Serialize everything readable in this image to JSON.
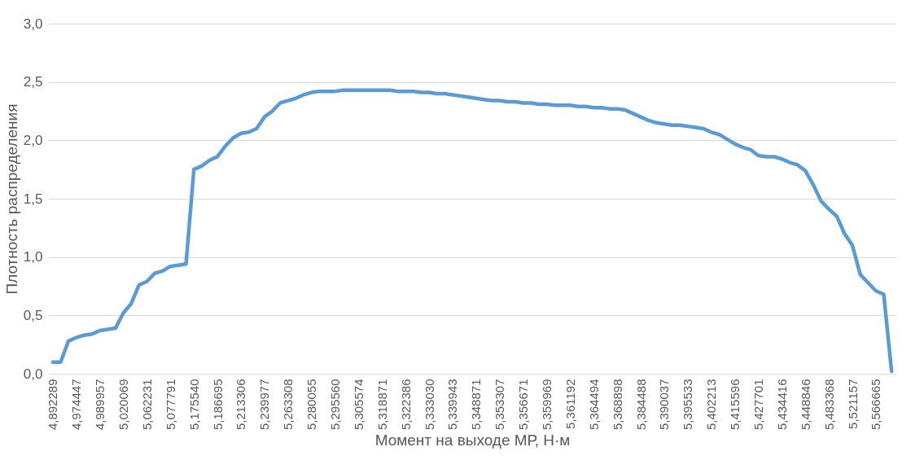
{
  "chart_data": {
    "type": "line",
    "xlabel": "Момент на выходе МР, Н·м",
    "ylabel": "Плотность распределения",
    "categories": [
      "4,892289",
      null,
      null,
      "4,974447",
      null,
      null,
      "4,989957",
      null,
      null,
      "5,020069",
      null,
      null,
      "5,062231",
      null,
      null,
      "5,077791",
      null,
      null,
      "5,175540",
      null,
      null,
      "5,186695",
      null,
      null,
      "5,213306",
      null,
      null,
      "5,239977",
      null,
      null,
      "5,263308",
      null,
      null,
      "5,280055",
      null,
      null,
      "5,295560",
      null,
      null,
      "5,305574",
      null,
      null,
      "5,318871",
      null,
      null,
      "5,322386",
      null,
      null,
      "5,333030",
      null,
      null,
      "5,339943",
      null,
      null,
      "5,348871",
      null,
      null,
      "5,353307",
      null,
      null,
      "5,356671",
      null,
      null,
      "5,359969",
      null,
      null,
      "5,361192",
      null,
      null,
      "5,364494",
      null,
      null,
      "5,368898",
      null,
      null,
      "5,384488",
      null,
      null,
      "5,390037",
      null,
      null,
      "5,395533",
      null,
      null,
      "5,402213",
      null,
      null,
      "5,415596",
      null,
      null,
      "5,427701",
      null,
      null,
      "5,434416",
      null,
      null,
      "5,448846",
      null,
      null,
      "5,483368",
      null,
      null,
      "5,521157",
      null,
      null,
      "5,566665",
      null,
      null
    ],
    "series": [
      {
        "color": "#5b9bd5",
        "values": [
          0.1,
          0.1,
          0.28,
          0.31,
          0.33,
          0.34,
          0.37,
          0.38,
          0.39,
          0.52,
          0.6,
          0.76,
          0.79,
          0.86,
          0.88,
          0.92,
          0.93,
          0.94,
          1.75,
          1.78,
          1.83,
          1.86,
          1.95,
          2.02,
          2.06,
          2.07,
          2.1,
          2.2,
          2.25,
          2.32,
          2.34,
          2.36,
          2.39,
          2.41,
          2.42,
          2.42,
          2.42,
          2.43,
          2.43,
          2.43,
          2.43,
          2.43,
          2.43,
          2.43,
          2.42,
          2.42,
          2.42,
          2.41,
          2.41,
          2.4,
          2.4,
          2.39,
          2.38,
          2.37,
          2.36,
          2.35,
          2.34,
          2.34,
          2.33,
          2.33,
          2.32,
          2.32,
          2.31,
          2.31,
          2.3,
          2.3,
          2.3,
          2.29,
          2.29,
          2.28,
          2.28,
          2.27,
          2.27,
          2.26,
          2.23,
          2.2,
          2.17,
          2.15,
          2.14,
          2.13,
          2.13,
          2.12,
          2.11,
          2.1,
          2.07,
          2.05,
          2.01,
          1.97,
          1.94,
          1.92,
          1.87,
          1.86,
          1.86,
          1.84,
          1.81,
          1.79,
          1.74,
          1.62,
          1.48,
          1.41,
          1.35,
          1.2,
          1.1,
          0.85,
          0.78,
          0.71,
          0.68,
          0.02
        ]
      }
    ],
    "ylim": [
      0,
      3
    ],
    "yticks": [
      {
        "value": 0,
        "label": "0,0"
      },
      {
        "value": 0.5,
        "label": "0,5"
      },
      {
        "value": 1,
        "label": "1,0"
      },
      {
        "value": 1.5,
        "label": "1,5"
      },
      {
        "value": 2,
        "label": "2,0"
      },
      {
        "value": 2.5,
        "label": "2,5"
      },
      {
        "value": 3,
        "label": "3,0"
      }
    ],
    "grid": "y",
    "legend": false,
    "marker": "none",
    "line_style": "solid"
  }
}
